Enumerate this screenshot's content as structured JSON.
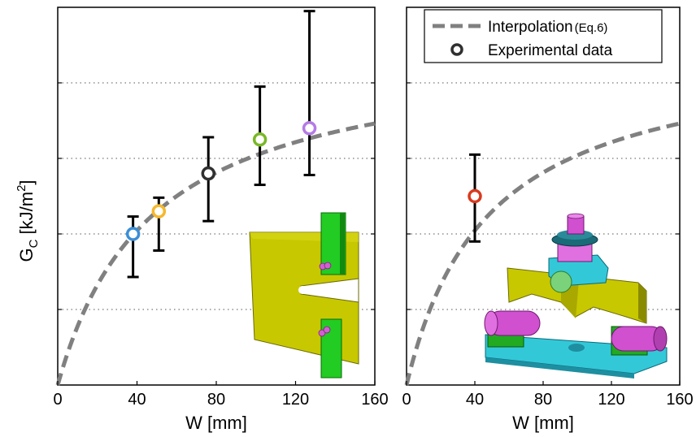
{
  "chart_data": [
    {
      "type": "scatter",
      "xlabel": "W [mm]",
      "ylabel_main": "G",
      "ylabel_sub": "C",
      "ylabel_rest": " [kJ/m",
      "ylabel_sup": "2",
      "ylabel_end": "]",
      "xlim": [
        0,
        160
      ],
      "xticks": [
        "0",
        "40",
        "80",
        "120",
        "160"
      ],
      "ylim": [
        0,
        5
      ],
      "yticks": [
        1,
        2,
        3,
        4
      ],
      "grid": "horizontal dotted",
      "series": [
        {
          "kind": "interpolation",
          "style": "dashed",
          "color": "#808080"
        },
        {
          "kind": "experimental",
          "points": [
            {
              "x": 38,
              "y": 2.0,
              "err_low": 1.43,
              "err_high": 2.23,
              "color": "#3b8fd6"
            },
            {
              "x": 51,
              "y": 2.3,
              "err_low": 1.78,
              "err_high": 2.48,
              "color": "#f5b82e"
            },
            {
              "x": 76,
              "y": 2.8,
              "err_low": 2.17,
              "err_high": 3.28,
              "color": "#303030"
            },
            {
              "x": 102,
              "y": 3.25,
              "err_low": 2.65,
              "err_high": 3.95,
              "color": "#7ab828"
            },
            {
              "x": 127,
              "y": 3.4,
              "err_low": 2.78,
              "err_high": 4.95,
              "color": "#b57be6"
            }
          ]
        }
      ],
      "inset": "compact tension specimen illustration"
    },
    {
      "type": "scatter",
      "xlabel": "W [mm]",
      "xlim": [
        0,
        160
      ],
      "xticks": [
        "0",
        "40",
        "80",
        "120",
        "160"
      ],
      "ylim": [
        0,
        5
      ],
      "yticks": [
        1,
        2,
        3,
        4
      ],
      "grid": "horizontal dotted",
      "legend": {
        "placement": "top",
        "entries": [
          {
            "label": "Interpolation",
            "label_small": "(Eq.6)",
            "style": "dashed",
            "color": "#808080"
          },
          {
            "label": "Experimental data",
            "style": "circle",
            "color": "#303030"
          }
        ]
      },
      "series": [
        {
          "kind": "interpolation",
          "style": "dashed",
          "color": "#808080"
        },
        {
          "kind": "experimental",
          "points": [
            {
              "x": 40,
              "y": 2.5,
              "err_low": 1.9,
              "err_high": 3.05,
              "color": "#d93a1e"
            }
          ]
        }
      ],
      "inset": "three-point bending fixture illustration"
    }
  ]
}
